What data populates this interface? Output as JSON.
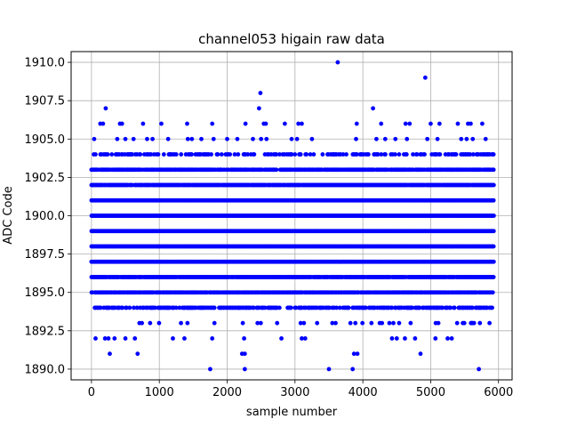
{
  "chart_data": {
    "type": "scatter",
    "title": "channel053 higain raw data",
    "xlabel": "sample number",
    "ylabel": "ADC Code",
    "xlim": [
      -300,
      6200
    ],
    "ylim": [
      1889.3,
      1910.7
    ],
    "xticks": [
      0,
      1000,
      2000,
      3000,
      4000,
      5000,
      6000
    ],
    "xtick_labels": [
      "0",
      "1000",
      "2000",
      "3000",
      "4000",
      "5000",
      "6000"
    ],
    "yticks": [
      1890.0,
      1892.5,
      1895.0,
      1897.5,
      1900.0,
      1902.5,
      1905.0,
      1907.5,
      1910.0
    ],
    "ytick_labels": [
      "1890.0",
      "1892.5",
      "1895.0",
      "1897.5",
      "1900.0",
      "1902.5",
      "1905.0",
      "1907.5",
      "1910.0"
    ],
    "grid": true,
    "marker_color": "#0000ff",
    "series": [
      {
        "x_range": [
          0,
          5930
        ],
        "level_density": {
          "1893": 0.08,
          "1894": 0.55,
          "1895": 0.85,
          "1896": 0.97,
          "1897": 1.0,
          "1898": 1.0,
          "1899": 1.0,
          "1900": 1.0,
          "1901": 1.0,
          "1902": 0.97,
          "1903": 0.8,
          "1904": 0.35
        },
        "sparse_points": [
          [
            1750,
            1890
          ],
          [
            2260,
            1890
          ],
          [
            3500,
            1890
          ],
          [
            3850,
            1890
          ],
          [
            5710,
            1890
          ],
          [
            270,
            1891
          ],
          [
            680,
            1891
          ],
          [
            2220,
            1891
          ],
          [
            2260,
            1891
          ],
          [
            3870,
            1891
          ],
          [
            3920,
            1891
          ],
          [
            4850,
            1891
          ],
          [
            60,
            1892
          ],
          [
            200,
            1892
          ],
          [
            250,
            1892
          ],
          [
            340,
            1892
          ],
          [
            500,
            1892
          ],
          [
            640,
            1892
          ],
          [
            1200,
            1892
          ],
          [
            1370,
            1892
          ],
          [
            1780,
            1892
          ],
          [
            2250,
            1892
          ],
          [
            2800,
            1892
          ],
          [
            3100,
            1892
          ],
          [
            3150,
            1892
          ],
          [
            4430,
            1892
          ],
          [
            4500,
            1892
          ],
          [
            4620,
            1892
          ],
          [
            4770,
            1892
          ],
          [
            5070,
            1892
          ],
          [
            5250,
            1892
          ],
          [
            5310,
            1892
          ],
          [
            40,
            1905
          ],
          [
            380,
            1905
          ],
          [
            500,
            1905
          ],
          [
            620,
            1905
          ],
          [
            820,
            1905
          ],
          [
            900,
            1905
          ],
          [
            1130,
            1905
          ],
          [
            1420,
            1905
          ],
          [
            1480,
            1905
          ],
          [
            1620,
            1905
          ],
          [
            1800,
            1905
          ],
          [
            2000,
            1905
          ],
          [
            2150,
            1905
          ],
          [
            2380,
            1905
          ],
          [
            2500,
            1905
          ],
          [
            2580,
            1905
          ],
          [
            2950,
            1905
          ],
          [
            3030,
            1905
          ],
          [
            3250,
            1905
          ],
          [
            3900,
            1905
          ],
          [
            4200,
            1905
          ],
          [
            4330,
            1905
          ],
          [
            4480,
            1905
          ],
          [
            4650,
            1905
          ],
          [
            4950,
            1905
          ],
          [
            5100,
            1905
          ],
          [
            5450,
            1905
          ],
          [
            5530,
            1905
          ],
          [
            5620,
            1905
          ],
          [
            5810,
            1905
          ],
          [
            130,
            1906
          ],
          [
            170,
            1906
          ],
          [
            420,
            1906
          ],
          [
            450,
            1906
          ],
          [
            760,
            1906
          ],
          [
            1030,
            1906
          ],
          [
            1410,
            1906
          ],
          [
            1780,
            1906
          ],
          [
            2270,
            1906
          ],
          [
            2540,
            1906
          ],
          [
            2570,
            1906
          ],
          [
            2850,
            1906
          ],
          [
            3050,
            1906
          ],
          [
            3100,
            1906
          ],
          [
            3910,
            1906
          ],
          [
            4270,
            1906
          ],
          [
            4630,
            1906
          ],
          [
            4690,
            1906
          ],
          [
            5000,
            1906
          ],
          [
            5130,
            1906
          ],
          [
            5400,
            1906
          ],
          [
            5550,
            1906
          ],
          [
            5590,
            1906
          ],
          [
            5760,
            1906
          ],
          [
            210,
            1907
          ],
          [
            2470,
            1907
          ],
          [
            4150,
            1907
          ],
          [
            2490,
            1908
          ],
          [
            4920,
            1909
          ],
          [
            3630,
            1910
          ]
        ]
      }
    ]
  }
}
